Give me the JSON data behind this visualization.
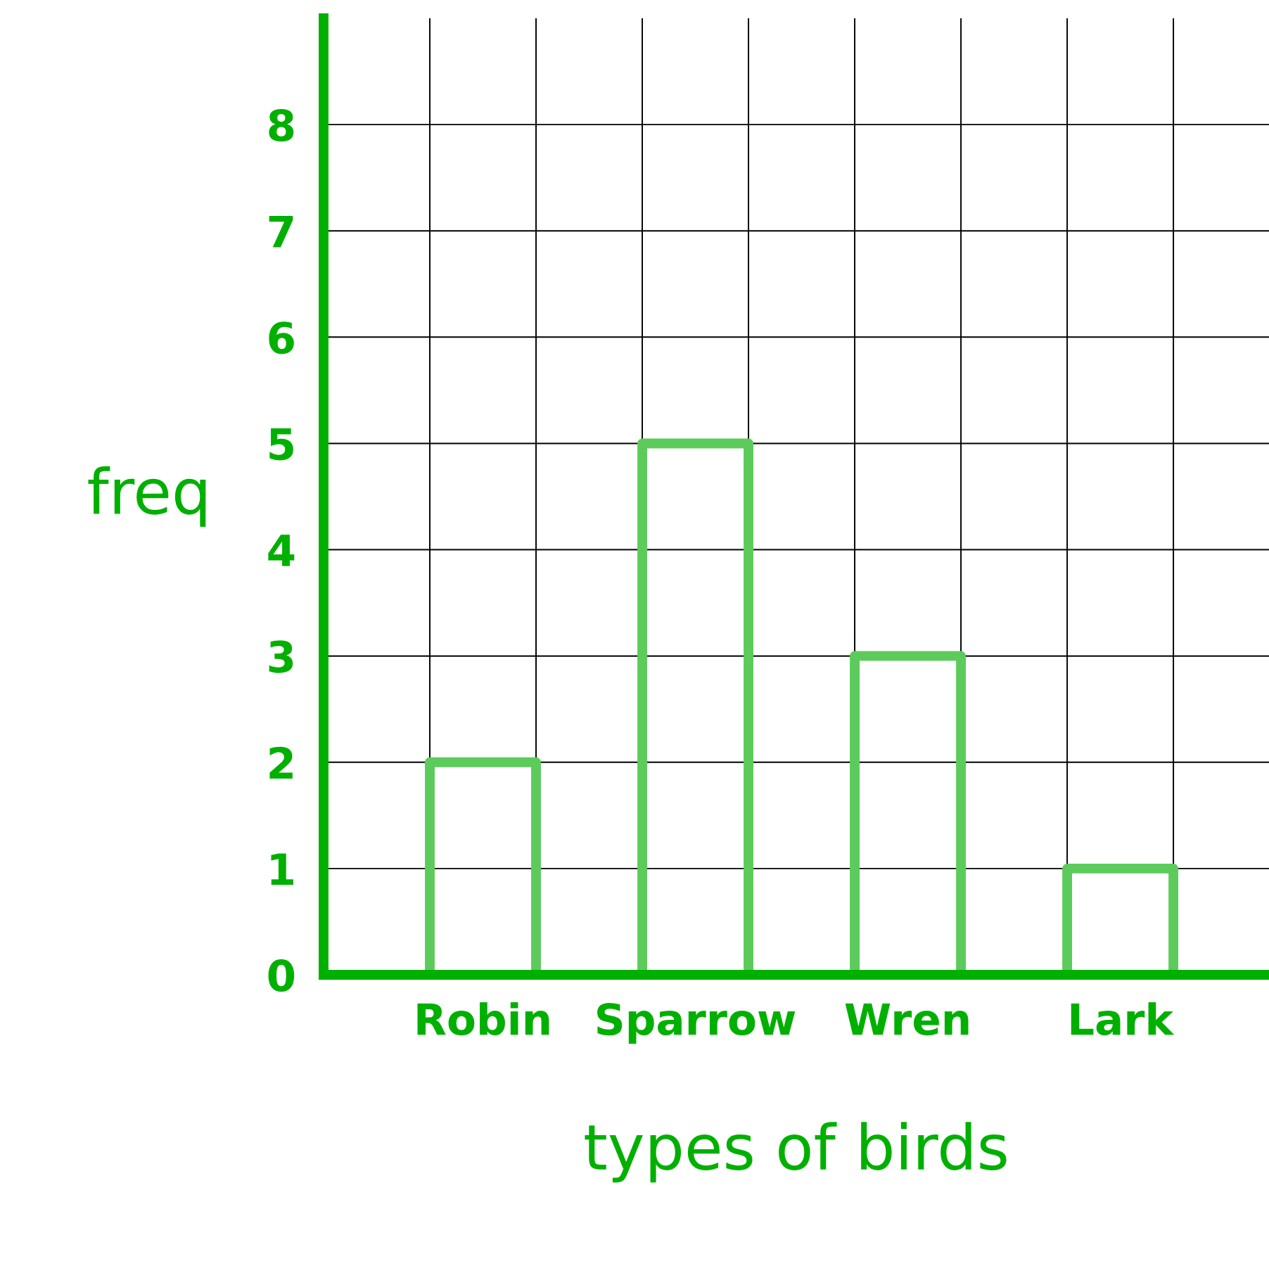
{
  "chart_data": {
    "type": "bar",
    "xlabel": "types of birds",
    "ylabel": "freq",
    "categories": [
      "Robin",
      "Sparrow",
      "Wren",
      "Lark"
    ],
    "values": [
      2,
      5,
      3,
      1
    ],
    "color": "#5ccb5c",
    "ylim": [
      0,
      9
    ],
    "yticks": [
      0,
      1,
      2,
      3,
      4,
      5,
      6,
      7,
      8
    ],
    "grid": true
  }
}
